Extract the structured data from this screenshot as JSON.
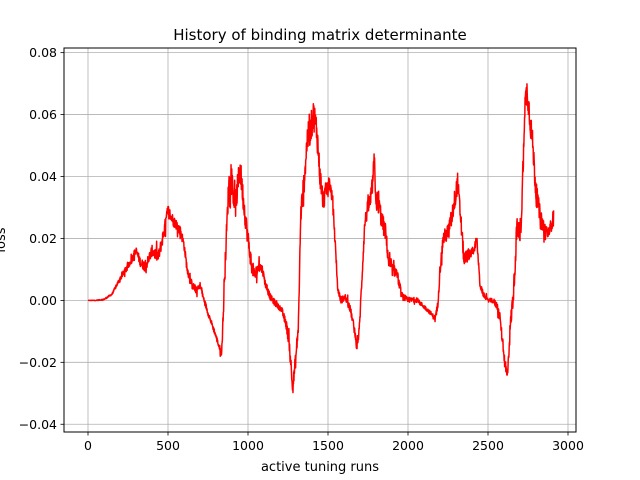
{
  "chart_data": {
    "type": "line",
    "title": "History of binding matrix determinante",
    "xlabel": "active tuning runs",
    "ylabel": "loss",
    "xlim": [
      -150,
      3050
    ],
    "ylim": [
      -0.0425,
      0.0815
    ],
    "grid": true,
    "xticks": [
      0,
      500,
      1000,
      1500,
      2000,
      2500,
      3000
    ],
    "xtick_labels": [
      "0",
      "500",
      "1000",
      "1500",
      "2000",
      "2500",
      "3000"
    ],
    "yticks": [
      -0.04,
      -0.02,
      0.0,
      0.02,
      0.04,
      0.06,
      0.08
    ],
    "ytick_labels": [
      "−0.04",
      "−0.02",
      "0.00",
      "0.02",
      "0.04",
      "0.06",
      "0.08"
    ],
    "series": [
      {
        "color": "#ff0000",
        "noise": [
          [
            0,
            0.0
          ],
          [
            150,
            0.0003
          ],
          [
            250,
            0.0012
          ],
          [
            330,
            0.0015
          ],
          [
            400,
            0.0018
          ],
          [
            470,
            0.0022
          ],
          [
            600,
            0.0015
          ],
          [
            700,
            0.001
          ],
          [
            800,
            0.0008
          ],
          [
            830,
            0.001
          ],
          [
            860,
            0.0035
          ],
          [
            950,
            0.0045
          ],
          [
            1000,
            0.003
          ],
          [
            1100,
            0.0012
          ],
          [
            1200,
            0.0008
          ],
          [
            1270,
            0.0022
          ],
          [
            1320,
            0.003
          ],
          [
            1360,
            0.0045
          ],
          [
            1420,
            0.005
          ],
          [
            1500,
            0.0025
          ],
          [
            1560,
            0.001
          ],
          [
            1660,
            0.0012
          ],
          [
            1720,
            0.002
          ],
          [
            1800,
            0.004
          ],
          [
            1900,
            0.002
          ],
          [
            2000,
            0.0008
          ],
          [
            2150,
            0.0006
          ],
          [
            2200,
            0.002
          ],
          [
            2300,
            0.0035
          ],
          [
            2400,
            0.0015
          ],
          [
            2500,
            0.0005
          ],
          [
            2580,
            0.0015
          ],
          [
            2620,
            0.0025
          ],
          [
            2700,
            0.004
          ],
          [
            2760,
            0.0045
          ],
          [
            2830,
            0.003
          ],
          [
            2910,
            0.002
          ]
        ],
        "points": [
          [
            0,
            0.0
          ],
          [
            50,
            0.0
          ],
          [
            100,
            0.0003
          ],
          [
            150,
            0.002
          ],
          [
            200,
            0.007
          ],
          [
            250,
            0.011
          ],
          [
            300,
            0.016
          ],
          [
            330,
            0.012
          ],
          [
            360,
            0.011
          ],
          [
            400,
            0.016
          ],
          [
            440,
            0.014
          ],
          [
            470,
            0.021
          ],
          [
            500,
            0.029
          ],
          [
            530,
            0.026
          ],
          [
            560,
            0.024
          ],
          [
            580,
            0.022
          ],
          [
            600,
            0.018
          ],
          [
            620,
            0.01
          ],
          [
            650,
            0.005
          ],
          [
            680,
            0.003
          ],
          [
            700,
            0.005
          ],
          [
            720,
            0.001
          ],
          [
            750,
            -0.004
          ],
          [
            790,
            -0.01
          ],
          [
            820,
            -0.015
          ],
          [
            835,
            -0.017
          ],
          [
            845,
            -0.005
          ],
          [
            860,
            0.015
          ],
          [
            880,
            0.038
          ],
          [
            900,
            0.038
          ],
          [
            920,
            0.03
          ],
          [
            950,
            0.043
          ],
          [
            970,
            0.033
          ],
          [
            985,
            0.026
          ],
          [
            1000,
            0.02
          ],
          [
            1020,
            0.012
          ],
          [
            1040,
            0.008
          ],
          [
            1070,
            0.011
          ],
          [
            1090,
            0.01
          ],
          [
            1110,
            0.005
          ],
          [
            1140,
            0.001
          ],
          [
            1170,
            -0.001
          ],
          [
            1210,
            -0.003
          ],
          [
            1240,
            -0.008
          ],
          [
            1260,
            -0.015
          ],
          [
            1280,
            -0.028
          ],
          [
            1300,
            -0.018
          ],
          [
            1315,
            -0.008
          ],
          [
            1330,
            0.028
          ],
          [
            1350,
            0.038
          ],
          [
            1370,
            0.052
          ],
          [
            1390,
            0.055
          ],
          [
            1410,
            0.06
          ],
          [
            1430,
            0.055
          ],
          [
            1450,
            0.04
          ],
          [
            1470,
            0.032
          ],
          [
            1490,
            0.036
          ],
          [
            1510,
            0.038
          ],
          [
            1530,
            0.032
          ],
          [
            1545,
            0.018
          ],
          [
            1560,
            0.004
          ],
          [
            1580,
            0.0
          ],
          [
            1610,
            0.001
          ],
          [
            1640,
            -0.003
          ],
          [
            1660,
            -0.008
          ],
          [
            1680,
            -0.015
          ],
          [
            1695,
            -0.01
          ],
          [
            1710,
            0.005
          ],
          [
            1730,
            0.025
          ],
          [
            1750,
            0.03
          ],
          [
            1770,
            0.033
          ],
          [
            1790,
            0.045
          ],
          [
            1800,
            0.033
          ],
          [
            1820,
            0.03
          ],
          [
            1840,
            0.025
          ],
          [
            1860,
            0.022
          ],
          [
            1880,
            0.012
          ],
          [
            1900,
            0.01
          ],
          [
            1930,
            0.009
          ],
          [
            1960,
            0.0015
          ],
          [
            2000,
            0.0
          ],
          [
            2050,
            0.0003
          ],
          [
            2100,
            -0.002
          ],
          [
            2140,
            -0.004
          ],
          [
            2170,
            -0.006
          ],
          [
            2185,
            -0.002
          ],
          [
            2200,
            0.01
          ],
          [
            2220,
            0.02
          ],
          [
            2250,
            0.022
          ],
          [
            2270,
            0.026
          ],
          [
            2290,
            0.032
          ],
          [
            2310,
            0.038
          ],
          [
            2330,
            0.026
          ],
          [
            2350,
            0.013
          ],
          [
            2380,
            0.015
          ],
          [
            2410,
            0.016
          ],
          [
            2430,
            0.02
          ],
          [
            2450,
            0.005
          ],
          [
            2470,
            0.002
          ],
          [
            2500,
            0.0
          ],
          [
            2530,
            0.0
          ],
          [
            2560,
            -0.002
          ],
          [
            2580,
            -0.008
          ],
          [
            2600,
            -0.018
          ],
          [
            2620,
            -0.025
          ],
          [
            2640,
            -0.008
          ],
          [
            2660,
            0.003
          ],
          [
            2680,
            0.023
          ],
          [
            2700,
            0.022
          ],
          [
            2710,
            0.028
          ],
          [
            2730,
            0.063
          ],
          [
            2745,
            0.068
          ],
          [
            2760,
            0.06
          ],
          [
            2780,
            0.05
          ],
          [
            2800,
            0.035
          ],
          [
            2830,
            0.026
          ],
          [
            2860,
            0.022
          ],
          [
            2880,
            0.022
          ],
          [
            2900,
            0.025
          ],
          [
            2910,
            0.028
          ]
        ]
      }
    ]
  }
}
